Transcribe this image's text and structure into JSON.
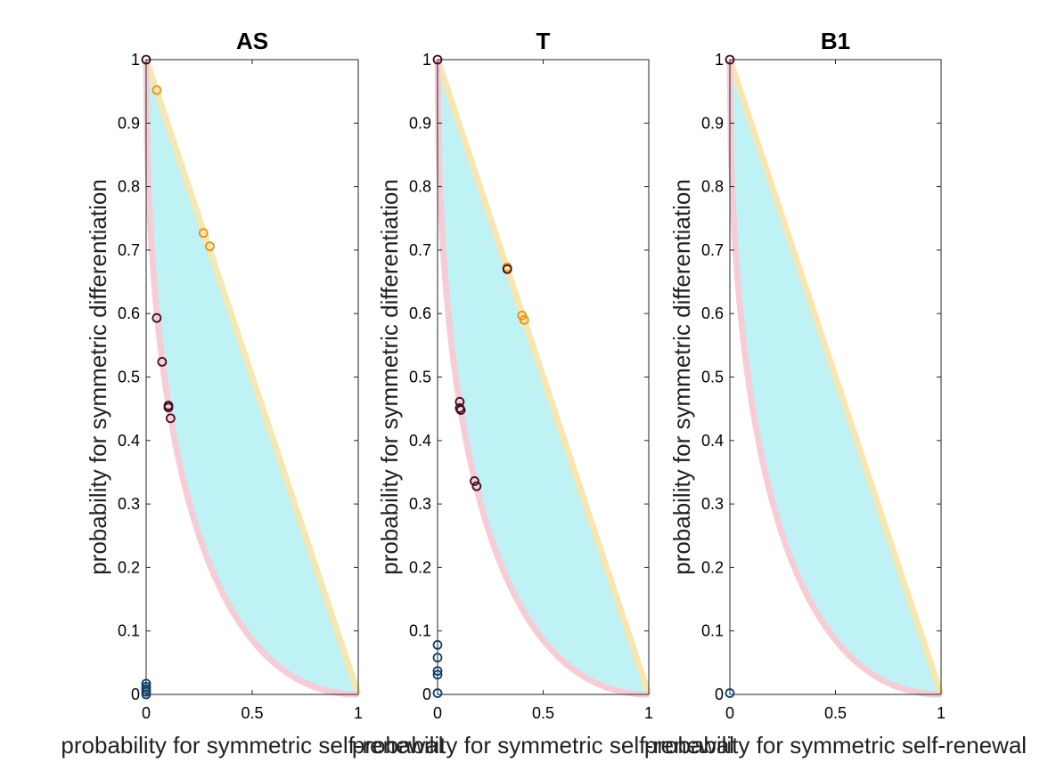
{
  "chart_data": [
    {
      "type": "scatter",
      "title": "AS",
      "xlabel": "probability for symmetric self-renewal",
      "ylabel": "probability for symmetric differentiation",
      "xlim": [
        0,
        1
      ],
      "ylim": [
        0,
        1
      ],
      "xticks": [
        "0",
        "0.5",
        "1"
      ],
      "yticks": [
        "0",
        "0.1",
        "0.2",
        "0.3",
        "0.4",
        "0.5",
        "0.6",
        "0.7",
        "0.8",
        "0.9",
        "1"
      ],
      "grid": false,
      "series": [
        {
          "color": "#f0900a",
          "points": [
            [
              0.05,
              0.952
            ],
            [
              0.27,
              0.727
            ],
            [
              0.3,
              0.706
            ]
          ]
        },
        {
          "color": "#3d0d1a",
          "points": [
            [
              0.0,
              1.0
            ],
            [
              0.05,
              0.593
            ],
            [
              0.075,
              0.524
            ],
            [
              0.105,
              0.455
            ],
            [
              0.105,
              0.452
            ],
            [
              0.115,
              0.435
            ]
          ]
        },
        {
          "color": "#0f3f6a",
          "points": [
            [
              0.0,
              0.0
            ],
            [
              0.0,
              0.004
            ],
            [
              0.0,
              0.008
            ],
            [
              0.0,
              0.012
            ],
            [
              0.0,
              0.017
            ]
          ]
        }
      ]
    },
    {
      "type": "scatter",
      "title": "T",
      "xlabel": "probability for symmetric self-renewal",
      "ylabel": "probability for symmetric differentiation",
      "xlim": [
        0,
        1
      ],
      "ylim": [
        0,
        1
      ],
      "xticks": [
        "0",
        "0.5",
        "1"
      ],
      "yticks": [
        "0",
        "0.1",
        "0.2",
        "0.3",
        "0.4",
        "0.5",
        "0.6",
        "0.7",
        "0.8",
        "0.9",
        "1"
      ],
      "grid": false,
      "series": [
        {
          "color": "#f0900a",
          "points": [
            [
              0.33,
              0.673
            ],
            [
              0.4,
              0.597
            ],
            [
              0.41,
              0.59
            ]
          ]
        },
        {
          "color": "#3d0d1a",
          "points": [
            [
              0.0,
              1.0
            ],
            [
              0.33,
              0.67
            ],
            [
              0.105,
              0.461
            ],
            [
              0.105,
              0.451
            ],
            [
              0.11,
              0.448
            ],
            [
              0.175,
              0.336
            ],
            [
              0.185,
              0.328
            ]
          ]
        },
        {
          "color": "#0f3f6a",
          "points": [
            [
              0.0,
              0.002
            ],
            [
              0.0,
              0.031
            ],
            [
              0.0,
              0.037
            ],
            [
              0.0,
              0.058
            ],
            [
              0.0,
              0.078
            ]
          ]
        }
      ]
    },
    {
      "type": "scatter",
      "title": "B1",
      "xlabel": "probability for symmetric self-renewal",
      "ylabel": "probability for symmetric differentiation",
      "xlim": [
        0,
        1
      ],
      "ylim": [
        0,
        1
      ],
      "xticks": [
        "0",
        "0.5",
        "1"
      ],
      "yticks": [
        "0",
        "0.1",
        "0.2",
        "0.3",
        "0.4",
        "0.5",
        "0.6",
        "0.7",
        "0.8",
        "0.9",
        "1"
      ],
      "grid": false,
      "series": [
        {
          "color": "#3d0d1a",
          "points": [
            [
              0.0,
              1.0
            ]
          ]
        },
        {
          "color": "#0f3f6a",
          "points": [
            [
              0.0,
              0.002
            ]
          ]
        }
      ]
    }
  ],
  "style": {
    "feasible_fill": "#bff2f4",
    "upper_boundary_color": "#f8e6b0",
    "lower_boundary_color": "#f6cdd6"
  }
}
